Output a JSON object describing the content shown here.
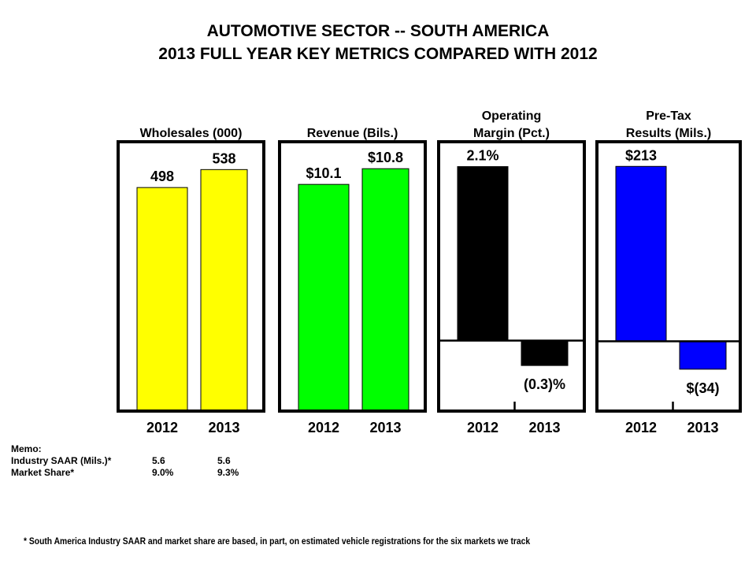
{
  "title_line1": "AUTOMOTIVE SECTOR -- SOUTH AMERICA",
  "title_line2": "2013 FULL YEAR KEY METRICS COMPARED WITH 2012",
  "chart_data": [
    {
      "type": "bar",
      "title": "Wholesales (000)",
      "categories": [
        "2012",
        "2013"
      ],
      "values": [
        498,
        538
      ],
      "labels": [
        "498",
        "538"
      ],
      "color": "#ffff00",
      "ylim": [
        0,
        600
      ]
    },
    {
      "type": "bar",
      "title": "Revenue (Bils.)",
      "categories": [
        "2012",
        "2013"
      ],
      "values": [
        10.1,
        10.8
      ],
      "labels": [
        "$10.1",
        "$10.8"
      ],
      "color": "#00ff00",
      "ylim": [
        0,
        12
      ]
    },
    {
      "type": "bar",
      "title": "Operating Margin (Pct.)",
      "categories": [
        "2012",
        "2013"
      ],
      "values": [
        2.1,
        -0.3
      ],
      "labels": [
        "2.1%",
        "(0.3)%"
      ],
      "color": "#000000",
      "ylim": [
        -0.85,
        2.4
      ]
    },
    {
      "type": "bar",
      "title": "Pre-Tax Results (Mils.)",
      "categories": [
        "2012",
        "2013"
      ],
      "values": [
        213,
        -34
      ],
      "labels": [
        "$213",
        "$(34)"
      ],
      "color": "#0000ff",
      "ylim": [
        -85,
        243
      ]
    }
  ],
  "panel_titles": [
    [
      "Wholesales (000)"
    ],
    [
      "Revenue (Bils.)"
    ],
    [
      "Operating",
      "Margin (Pct.)"
    ],
    [
      "Pre-Tax",
      "Results (Mils.)"
    ]
  ],
  "memo": {
    "heading": "Memo:",
    "rows": [
      {
        "label": "Industry SAAR (Mils.)*",
        "v2012": "5.6",
        "v2013": "5.6"
      },
      {
        "label": "Market Share*",
        "v2012": "9.0%",
        "v2013": "9.3%"
      }
    ]
  },
  "footnote": "*  South America Industry  SAAR and market share are based, in part, on estimated vehicle registrations  for the six markets  we track"
}
